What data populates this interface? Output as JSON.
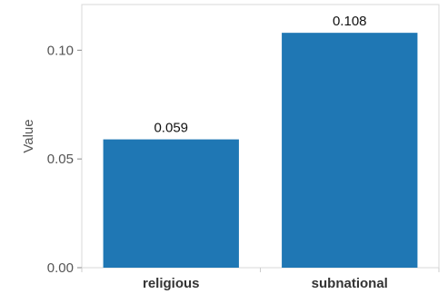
{
  "chart_data": {
    "type": "bar",
    "categories": [
      "religious",
      "subnational"
    ],
    "values": [
      0.059,
      0.108
    ],
    "data_labels": [
      "0.059",
      "0.108"
    ],
    "title": "",
    "xlabel": "",
    "ylabel": "Value",
    "ylim": [
      0,
      0.121
    ],
    "yticks": [
      0.0,
      0.05,
      0.1
    ],
    "ytick_labels": [
      "0.00",
      "0.05",
      "0.10"
    ],
    "grid": false,
    "bar_color": "#1f77b4",
    "frame_color": "#d9d9d9"
  }
}
